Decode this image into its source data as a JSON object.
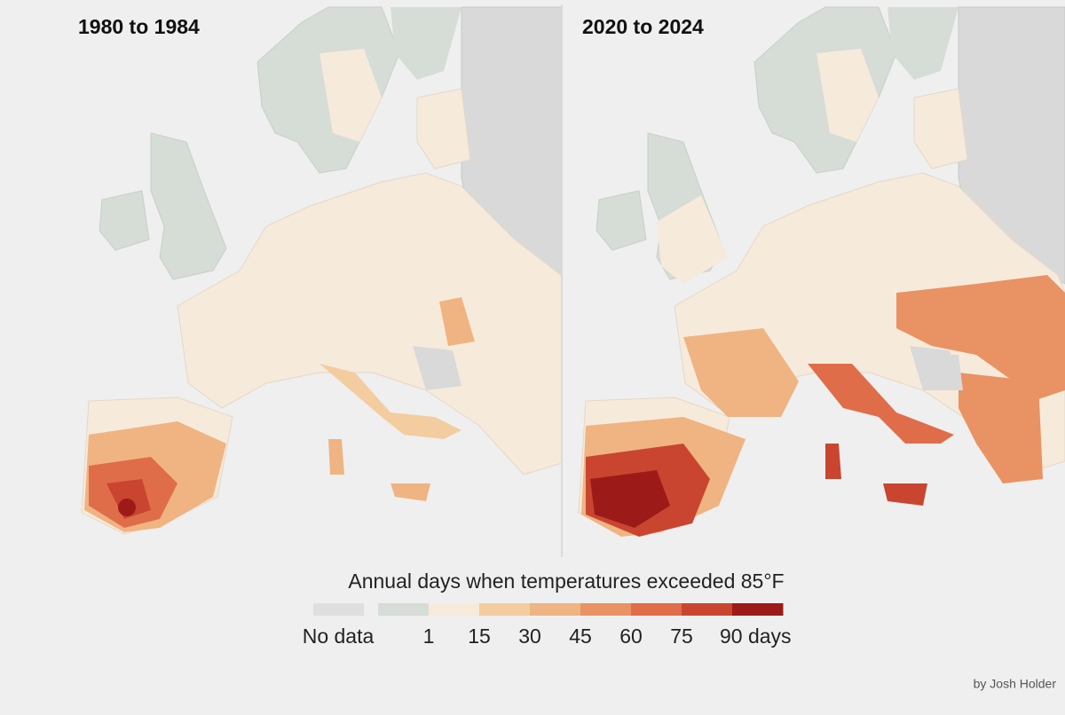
{
  "panels": [
    {
      "title": "1980 to 1984"
    },
    {
      "title": "2020 to 2024"
    }
  ],
  "legend": {
    "title": "Annual days when temperatures exceeded 85°F",
    "no_data": {
      "label": "No data",
      "color": "#dfdfdf"
    },
    "swatches": [
      "#d6dcd6",
      "#f6eadb",
      "#f3cc9f",
      "#efb482",
      "#e99263",
      "#df6d4a",
      "#c9452f",
      "#9c1b19"
    ],
    "labels": [
      "1",
      "15",
      "30",
      "45",
      "60",
      "75",
      "90 days"
    ]
  },
  "credit": "by Josh Holder"
}
